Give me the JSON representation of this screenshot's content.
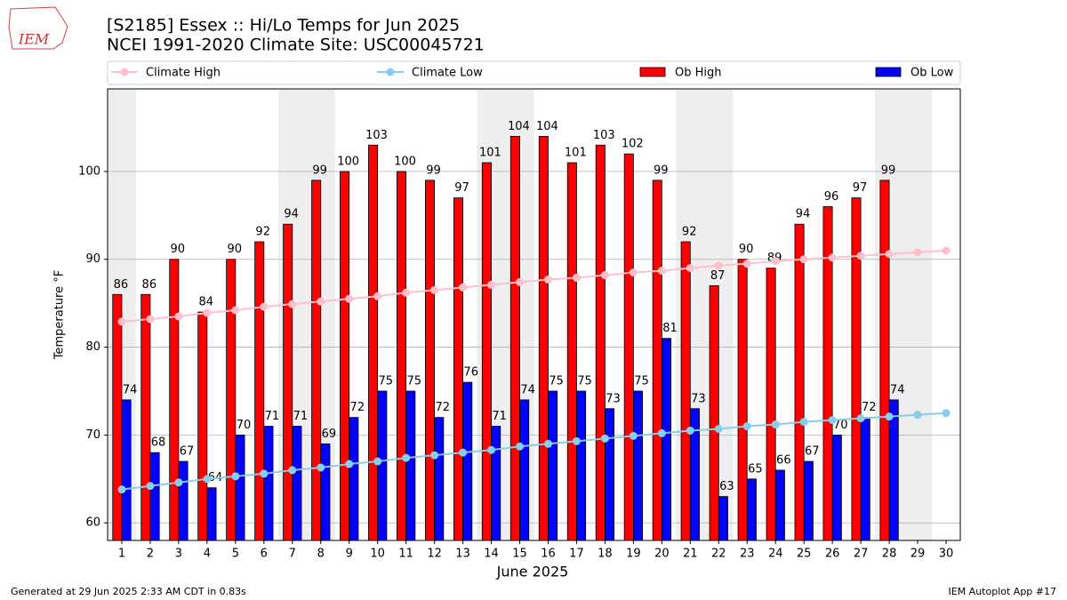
{
  "chart_data": {
    "type": "bar",
    "title": "[S2185] Essex :: Hi/Lo Temps for Jun 2025",
    "subtitle": "NCEI 1991-2020 Climate Site: USC00045721",
    "logo_text": "IEM",
    "x_label": "June 2025",
    "y_label": "Temperature °F",
    "footer_left": "Generated at 29 Jun 2025 2:33 AM CDT in 0.83s",
    "footer_right": "IEM Autoplot App #17",
    "x": [
      1,
      2,
      3,
      4,
      5,
      6,
      7,
      8,
      9,
      10,
      11,
      12,
      13,
      14,
      15,
      16,
      17,
      18,
      19,
      20,
      21,
      22,
      23,
      24,
      25,
      26,
      27,
      28,
      29,
      30
    ],
    "xlim": [
      0.5,
      30.5
    ],
    "xticks": [
      1,
      2,
      3,
      4,
      5,
      6,
      7,
      8,
      9,
      10,
      11,
      12,
      13,
      14,
      15,
      16,
      17,
      18,
      19,
      20,
      21,
      22,
      23,
      24,
      25,
      26,
      27,
      28,
      29,
      30
    ],
    "ylim": [
      58,
      109.4
    ],
    "yticks": [
      60,
      70,
      80,
      90,
      100
    ],
    "grid": true,
    "shaded_days": [
      1,
      7,
      8,
      14,
      15,
      21,
      22,
      28,
      29
    ],
    "shade_color": "#eeeeee",
    "series": [
      {
        "name": "Climate High",
        "kind": "line",
        "color": "#ffc0cb",
        "values": [
          82.9,
          83.2,
          83.5,
          83.9,
          84.2,
          84.6,
          84.9,
          85.2,
          85.5,
          85.8,
          86.2,
          86.5,
          86.8,
          87.1,
          87.4,
          87.7,
          87.9,
          88.2,
          88.5,
          88.7,
          89.0,
          89.3,
          89.5,
          89.8,
          90.0,
          90.2,
          90.4,
          90.6,
          90.8,
          91.0
        ]
      },
      {
        "name": "Climate Low",
        "kind": "line",
        "color": "#87ceeb",
        "values": [
          63.8,
          64.2,
          64.6,
          65.0,
          65.3,
          65.6,
          66.0,
          66.3,
          66.7,
          67.0,
          67.4,
          67.7,
          68.0,
          68.3,
          68.7,
          69.0,
          69.3,
          69.6,
          69.9,
          70.2,
          70.5,
          70.7,
          71.0,
          71.2,
          71.5,
          71.7,
          71.9,
          72.1,
          72.3,
          72.5
        ]
      },
      {
        "name": "Ob High",
        "kind": "bar",
        "offset": -1,
        "color": "#ff0000",
        "values": [
          86,
          86,
          90,
          84,
          90,
          92,
          94,
          99,
          100,
          103,
          100,
          99,
          97,
          101,
          104,
          104,
          101,
          103,
          102,
          99,
          92,
          87,
          90,
          89,
          94,
          96,
          97,
          99,
          null,
          null
        ]
      },
      {
        "name": "Ob Low",
        "kind": "bar",
        "offset": 1,
        "color": "#0000ff",
        "values": [
          74,
          68,
          67,
          64,
          70,
          71,
          71,
          69,
          72,
          75,
          75,
          72,
          76,
          71,
          74,
          75,
          75,
          73,
          75,
          81,
          73,
          63,
          65,
          66,
          67,
          70,
          72,
          74,
          null,
          null
        ]
      }
    ]
  }
}
